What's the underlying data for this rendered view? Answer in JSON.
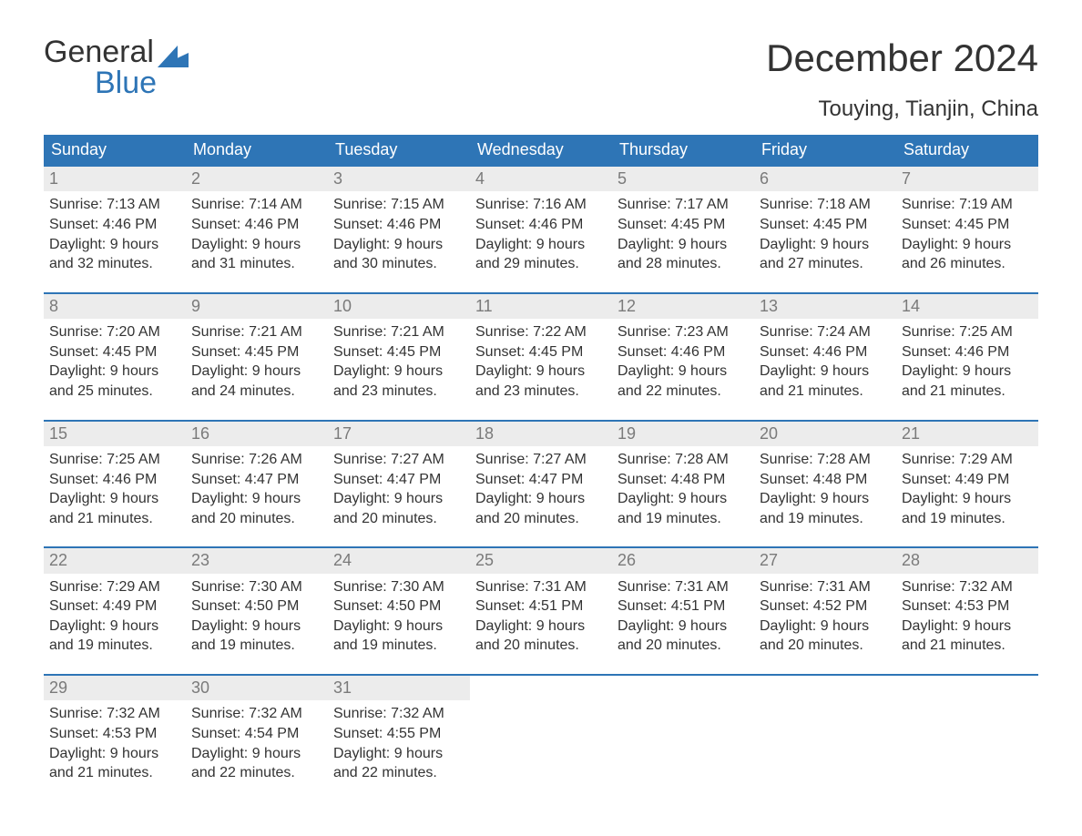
{
  "brand": {
    "line1": "General",
    "line2": "Blue",
    "flag_color": "#2e75b6"
  },
  "title": "December 2024",
  "location": "Touying, Tianjin, China",
  "colors": {
    "header_bg": "#2e75b6",
    "header_text": "#ffffff",
    "week_border": "#2e75b6",
    "daynum_bg": "#ececec",
    "daynum_text": "#7a7a7a",
    "body_text": "#333333",
    "background": "#ffffff"
  },
  "typography": {
    "title_fontsize": 42,
    "location_fontsize": 24,
    "weekday_fontsize": 18,
    "daynum_fontsize": 18,
    "body_fontsize": 16,
    "font_family": "Arial"
  },
  "weekdays": [
    "Sunday",
    "Monday",
    "Tuesday",
    "Wednesday",
    "Thursday",
    "Friday",
    "Saturday"
  ],
  "weeks": [
    [
      {
        "n": "1",
        "sr": "Sunrise: 7:13 AM",
        "ss": "Sunset: 4:46 PM",
        "d1": "Daylight: 9 hours",
        "d2": "and 32 minutes."
      },
      {
        "n": "2",
        "sr": "Sunrise: 7:14 AM",
        "ss": "Sunset: 4:46 PM",
        "d1": "Daylight: 9 hours",
        "d2": "and 31 minutes."
      },
      {
        "n": "3",
        "sr": "Sunrise: 7:15 AM",
        "ss": "Sunset: 4:46 PM",
        "d1": "Daylight: 9 hours",
        "d2": "and 30 minutes."
      },
      {
        "n": "4",
        "sr": "Sunrise: 7:16 AM",
        "ss": "Sunset: 4:46 PM",
        "d1": "Daylight: 9 hours",
        "d2": "and 29 minutes."
      },
      {
        "n": "5",
        "sr": "Sunrise: 7:17 AM",
        "ss": "Sunset: 4:45 PM",
        "d1": "Daylight: 9 hours",
        "d2": "and 28 minutes."
      },
      {
        "n": "6",
        "sr": "Sunrise: 7:18 AM",
        "ss": "Sunset: 4:45 PM",
        "d1": "Daylight: 9 hours",
        "d2": "and 27 minutes."
      },
      {
        "n": "7",
        "sr": "Sunrise: 7:19 AM",
        "ss": "Sunset: 4:45 PM",
        "d1": "Daylight: 9 hours",
        "d2": "and 26 minutes."
      }
    ],
    [
      {
        "n": "8",
        "sr": "Sunrise: 7:20 AM",
        "ss": "Sunset: 4:45 PM",
        "d1": "Daylight: 9 hours",
        "d2": "and 25 minutes."
      },
      {
        "n": "9",
        "sr": "Sunrise: 7:21 AM",
        "ss": "Sunset: 4:45 PM",
        "d1": "Daylight: 9 hours",
        "d2": "and 24 minutes."
      },
      {
        "n": "10",
        "sr": "Sunrise: 7:21 AM",
        "ss": "Sunset: 4:45 PM",
        "d1": "Daylight: 9 hours",
        "d2": "and 23 minutes."
      },
      {
        "n": "11",
        "sr": "Sunrise: 7:22 AM",
        "ss": "Sunset: 4:45 PM",
        "d1": "Daylight: 9 hours",
        "d2": "and 23 minutes."
      },
      {
        "n": "12",
        "sr": "Sunrise: 7:23 AM",
        "ss": "Sunset: 4:46 PM",
        "d1": "Daylight: 9 hours",
        "d2": "and 22 minutes."
      },
      {
        "n": "13",
        "sr": "Sunrise: 7:24 AM",
        "ss": "Sunset: 4:46 PM",
        "d1": "Daylight: 9 hours",
        "d2": "and 21 minutes."
      },
      {
        "n": "14",
        "sr": "Sunrise: 7:25 AM",
        "ss": "Sunset: 4:46 PM",
        "d1": "Daylight: 9 hours",
        "d2": "and 21 minutes."
      }
    ],
    [
      {
        "n": "15",
        "sr": "Sunrise: 7:25 AM",
        "ss": "Sunset: 4:46 PM",
        "d1": "Daylight: 9 hours",
        "d2": "and 21 minutes."
      },
      {
        "n": "16",
        "sr": "Sunrise: 7:26 AM",
        "ss": "Sunset: 4:47 PM",
        "d1": "Daylight: 9 hours",
        "d2": "and 20 minutes."
      },
      {
        "n": "17",
        "sr": "Sunrise: 7:27 AM",
        "ss": "Sunset: 4:47 PM",
        "d1": "Daylight: 9 hours",
        "d2": "and 20 minutes."
      },
      {
        "n": "18",
        "sr": "Sunrise: 7:27 AM",
        "ss": "Sunset: 4:47 PM",
        "d1": "Daylight: 9 hours",
        "d2": "and 20 minutes."
      },
      {
        "n": "19",
        "sr": "Sunrise: 7:28 AM",
        "ss": "Sunset: 4:48 PM",
        "d1": "Daylight: 9 hours",
        "d2": "and 19 minutes."
      },
      {
        "n": "20",
        "sr": "Sunrise: 7:28 AM",
        "ss": "Sunset: 4:48 PM",
        "d1": "Daylight: 9 hours",
        "d2": "and 19 minutes."
      },
      {
        "n": "21",
        "sr": "Sunrise: 7:29 AM",
        "ss": "Sunset: 4:49 PM",
        "d1": "Daylight: 9 hours",
        "d2": "and 19 minutes."
      }
    ],
    [
      {
        "n": "22",
        "sr": "Sunrise: 7:29 AM",
        "ss": "Sunset: 4:49 PM",
        "d1": "Daylight: 9 hours",
        "d2": "and 19 minutes."
      },
      {
        "n": "23",
        "sr": "Sunrise: 7:30 AM",
        "ss": "Sunset: 4:50 PM",
        "d1": "Daylight: 9 hours",
        "d2": "and 19 minutes."
      },
      {
        "n": "24",
        "sr": "Sunrise: 7:30 AM",
        "ss": "Sunset: 4:50 PM",
        "d1": "Daylight: 9 hours",
        "d2": "and 19 minutes."
      },
      {
        "n": "25",
        "sr": "Sunrise: 7:31 AM",
        "ss": "Sunset: 4:51 PM",
        "d1": "Daylight: 9 hours",
        "d2": "and 20 minutes."
      },
      {
        "n": "26",
        "sr": "Sunrise: 7:31 AM",
        "ss": "Sunset: 4:51 PM",
        "d1": "Daylight: 9 hours",
        "d2": "and 20 minutes."
      },
      {
        "n": "27",
        "sr": "Sunrise: 7:31 AM",
        "ss": "Sunset: 4:52 PM",
        "d1": "Daylight: 9 hours",
        "d2": "and 20 minutes."
      },
      {
        "n": "28",
        "sr": "Sunrise: 7:32 AM",
        "ss": "Sunset: 4:53 PM",
        "d1": "Daylight: 9 hours",
        "d2": "and 21 minutes."
      }
    ],
    [
      {
        "n": "29",
        "sr": "Sunrise: 7:32 AM",
        "ss": "Sunset: 4:53 PM",
        "d1": "Daylight: 9 hours",
        "d2": "and 21 minutes."
      },
      {
        "n": "30",
        "sr": "Sunrise: 7:32 AM",
        "ss": "Sunset: 4:54 PM",
        "d1": "Daylight: 9 hours",
        "d2": "and 22 minutes."
      },
      {
        "n": "31",
        "sr": "Sunrise: 7:32 AM",
        "ss": "Sunset: 4:55 PM",
        "d1": "Daylight: 9 hours",
        "d2": "and 22 minutes."
      },
      null,
      null,
      null,
      null
    ]
  ]
}
